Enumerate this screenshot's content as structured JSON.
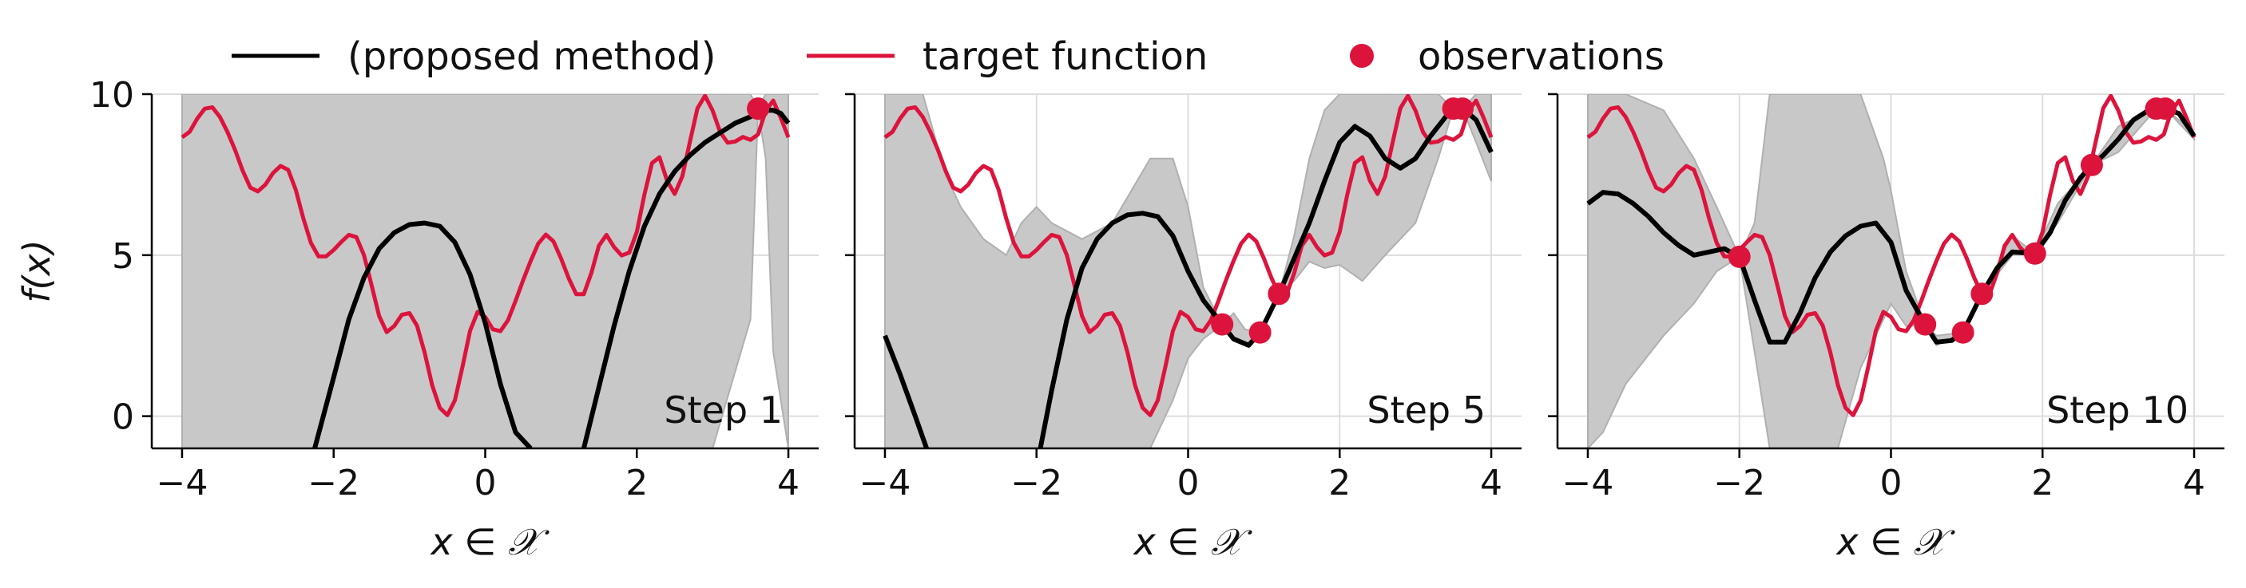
{
  "chart_data": {
    "type": "line",
    "layout": "three panels side by side, shared y axis",
    "legend": {
      "placement": "top-center, above panels",
      "entries": [
        {
          "label": "(proposed method)",
          "marker": "line",
          "color": "#000000"
        },
        {
          "label": "target function",
          "marker": "line",
          "color": "#dc143c"
        },
        {
          "label": "observations",
          "marker": "dot",
          "color": "#dc143c"
        }
      ]
    },
    "ylabel": "f(x)",
    "xlim": [
      -4.4,
      4.4
    ],
    "ylim": [
      -1.0,
      10.0
    ],
    "xticks": [
      -4,
      -2,
      0,
      2,
      4
    ],
    "xtick_labels": [
      "−4",
      "−2",
      "0",
      "2",
      "4"
    ],
    "yticks": [
      0,
      5,
      10
    ],
    "ytick_labels": [
      "0",
      "5",
      "10"
    ],
    "grid": true,
    "colors": {
      "target": "#dc143c",
      "model": "#000000",
      "band": "#c8c8c8",
      "grid": "#dddddd"
    },
    "target_function": {
      "name": "target function",
      "x": [
        -4.0,
        -3.9,
        -3.8,
        -3.7,
        -3.6,
        -3.5,
        -3.4,
        -3.3,
        -3.2,
        -3.1,
        -3.0,
        -2.9,
        -2.8,
        -2.7,
        -2.6,
        -2.5,
        -2.4,
        -2.3,
        -2.2,
        -2.1,
        -2.0,
        -1.9,
        -1.8,
        -1.7,
        -1.6,
        -1.5,
        -1.4,
        -1.3,
        -1.2,
        -1.1,
        -1.0,
        -0.9,
        -0.8,
        -0.7,
        -0.6,
        -0.5,
        -0.4,
        -0.3,
        -0.2,
        -0.1,
        0.0,
        0.1,
        0.2,
        0.3,
        0.4,
        0.5,
        0.6,
        0.7,
        0.8,
        0.9,
        1.0,
        1.1,
        1.2,
        1.3,
        1.4,
        1.5,
        1.6,
        1.7,
        1.8,
        1.9,
        2.0,
        2.1,
        2.2,
        2.3,
        2.4,
        2.5,
        2.6,
        2.7,
        2.8,
        2.9,
        3.0,
        3.1,
        3.2,
        3.3,
        3.4,
        3.5,
        3.6,
        3.7,
        3.8,
        3.9,
        4.0
      ],
      "y": [
        8.66,
        8.83,
        9.24,
        9.55,
        9.59,
        9.29,
        8.82,
        8.26,
        7.62,
        7.1,
        6.98,
        7.19,
        7.55,
        7.77,
        7.65,
        7.03,
        6.14,
        5.38,
        4.96,
        4.96,
        5.16,
        5.41,
        5.63,
        5.56,
        5.0,
        4.07,
        3.11,
        2.61,
        2.8,
        3.15,
        3.2,
        2.81,
        1.98,
        0.96,
        0.26,
        0.03,
        0.49,
        1.53,
        2.65,
        3.24,
        3.08,
        2.7,
        2.64,
        2.98,
        3.58,
        4.22,
        4.82,
        5.36,
        5.64,
        5.43,
        4.9,
        4.29,
        3.79,
        3.79,
        4.44,
        5.29,
        5.63,
        5.25,
        4.99,
        5.08,
        5.72,
        6.88,
        7.86,
        8.04,
        7.31,
        6.9,
        7.44,
        8.51,
        9.56,
        9.95,
        9.49,
        8.82,
        8.49,
        8.53,
        8.67,
        8.58,
        8.75,
        9.48,
        9.8,
        9.26,
        8.66
      ]
    },
    "panels": [
      {
        "label": "Step 1",
        "xlabel": "x ∈ 𝒳",
        "observations": {
          "x": [
            3.6
          ],
          "y": [
            9.55
          ]
        },
        "model_mean": {
          "name": "(proposed method)",
          "x": [
            -2.25,
            -2.0,
            -1.8,
            -1.6,
            -1.4,
            -1.2,
            -1.0,
            -0.8,
            -0.6,
            -0.4,
            -0.2,
            0.0,
            0.2,
            0.4,
            0.6,
            null,
            1.3,
            1.5,
            1.7,
            1.9,
            2.1,
            2.3,
            2.5,
            2.7,
            2.9,
            3.1,
            3.3,
            3.5,
            3.6,
            3.7,
            3.8,
            3.9,
            4.0
          ],
          "y": [
            -1.0,
            1.2,
            3.0,
            4.3,
            5.2,
            5.7,
            5.95,
            6.0,
            5.9,
            5.4,
            4.4,
            2.9,
            1.0,
            -0.5,
            -1.0,
            null,
            -1.0,
            0.9,
            2.8,
            4.5,
            5.9,
            6.9,
            7.6,
            8.1,
            8.5,
            8.8,
            9.1,
            9.3,
            9.45,
            9.5,
            9.5,
            9.4,
            9.1
          ]
        },
        "band": {
          "x": [
            -4.0,
            0.0,
            3.0,
            3.5,
            3.6,
            3.7,
            3.8,
            4.0
          ],
          "lower": [
            -1.0,
            -1.0,
            -1.0,
            3.0,
            9.55,
            8.0,
            2.0,
            -1.0
          ],
          "upper": [
            10.0,
            10.0,
            10.0,
            10.0,
            9.55,
            10.0,
            10.0,
            10.0
          ]
        }
      },
      {
        "label": "Step 5",
        "xlabel": "x ∈ 𝒳",
        "observations": {
          "x": [
            0.45,
            0.95,
            1.2,
            3.5,
            3.62
          ],
          "y": [
            2.85,
            2.6,
            3.8,
            9.55,
            9.55
          ]
        },
        "model_mean": {
          "name": "(proposed method)",
          "x": [
            -4.0,
            -3.8,
            -3.6,
            -3.45,
            null,
            -1.95,
            -1.8,
            -1.6,
            -1.4,
            -1.2,
            -1.0,
            -0.8,
            -0.6,
            -0.4,
            -0.2,
            0.0,
            0.2,
            0.45,
            0.6,
            0.8,
            0.95,
            1.2,
            1.4,
            1.6,
            1.8,
            2.0,
            2.2,
            2.4,
            2.6,
            2.8,
            3.0,
            3.2,
            3.4,
            3.5,
            3.62,
            3.7,
            3.8,
            4.0
          ],
          "y": [
            2.5,
            1.3,
            0.0,
            -1.0,
            null,
            -1.0,
            0.8,
            3.0,
            4.6,
            5.5,
            6.0,
            6.25,
            6.3,
            6.2,
            5.6,
            4.5,
            3.6,
            2.85,
            2.4,
            2.2,
            2.6,
            3.8,
            4.9,
            6.0,
            7.3,
            8.5,
            9.0,
            8.7,
            8.0,
            7.7,
            8.0,
            8.7,
            9.3,
            9.55,
            9.55,
            9.4,
            9.2,
            8.2
          ]
        },
        "band": {
          "x": [
            -4.0,
            -3.5,
            -3.2,
            -3.0,
            -2.7,
            -2.4,
            -2.2,
            -2.0,
            -1.8,
            -1.4,
            -1.0,
            -0.5,
            -0.2,
            0.0,
            0.2,
            0.45,
            0.6,
            0.75,
            0.95,
            1.2,
            1.4,
            1.6,
            1.8,
            2.0,
            2.3,
            2.6,
            3.0,
            3.3,
            3.5,
            3.62,
            3.8,
            4.0
          ],
          "lower": [
            -1.0,
            -1.0,
            -1.0,
            -1.0,
            -1.0,
            -1.0,
            -1.0,
            -1.0,
            -1.0,
            -1.0,
            -1.0,
            -1.0,
            0.5,
            1.8,
            2.4,
            2.85,
            2.4,
            2.2,
            2.6,
            3.8,
            4.2,
            4.8,
            4.6,
            4.7,
            4.2,
            5.0,
            6.0,
            8.0,
            9.55,
            9.55,
            8.5,
            7.3
          ],
          "upper": [
            10.0,
            10.0,
            7.5,
            6.5,
            5.5,
            5.0,
            6.0,
            6.5,
            6.0,
            5.5,
            6.0,
            8.0,
            8.0,
            6.5,
            4.0,
            2.85,
            3.2,
            2.7,
            2.6,
            3.8,
            5.6,
            8.0,
            9.5,
            10.0,
            10.0,
            10.0,
            10.0,
            10.0,
            9.55,
            9.55,
            10.0,
            10.0
          ]
        }
      },
      {
        "label": "Step 10",
        "xlabel": "x ∈ 𝒳",
        "observations": {
          "x": [
            -2.0,
            0.45,
            0.95,
            1.2,
            1.9,
            2.65,
            3.5,
            3.62
          ],
          "y": [
            4.95,
            2.85,
            2.6,
            3.8,
            5.05,
            7.8,
            9.55,
            9.55
          ]
        },
        "model_mean": {
          "name": "(proposed method)",
          "x": [
            -4.0,
            -3.8,
            -3.6,
            -3.4,
            -3.2,
            -3.0,
            -2.8,
            -2.6,
            -2.4,
            -2.2,
            -2.0,
            -1.8,
            -1.6,
            -1.4,
            -1.2,
            -1.0,
            -0.8,
            -0.6,
            -0.4,
            -0.2,
            0.0,
            0.2,
            0.45,
            0.6,
            0.8,
            0.95,
            1.2,
            1.4,
            1.6,
            1.9,
            2.1,
            2.3,
            2.5,
            2.65,
            2.8,
            3.0,
            3.2,
            3.4,
            3.5,
            3.62,
            3.8,
            4.0
          ],
          "y": [
            6.6,
            6.95,
            6.9,
            6.6,
            6.2,
            5.7,
            5.3,
            5.0,
            5.1,
            5.2,
            4.95,
            3.6,
            2.3,
            2.3,
            3.2,
            4.3,
            5.1,
            5.6,
            5.9,
            6.0,
            5.4,
            3.9,
            2.85,
            2.3,
            2.35,
            2.6,
            3.8,
            4.6,
            5.1,
            5.05,
            5.7,
            6.7,
            7.4,
            7.8,
            8.1,
            8.6,
            9.2,
            9.5,
            9.55,
            9.55,
            9.4,
            8.7
          ]
        },
        "band": {
          "x": [
            -4.0,
            -3.8,
            -3.5,
            -3.0,
            -2.6,
            -2.3,
            -2.0,
            -1.8,
            -1.6,
            -1.4,
            -1.2,
            -1.0,
            -0.7,
            -0.4,
            -0.1,
            0.0,
            0.2,
            0.45,
            0.6,
            0.95,
            1.2,
            1.6,
            1.9,
            2.2,
            2.65,
            3.0,
            3.5,
            3.62,
            4.0
          ],
          "lower": [
            -1.0,
            -0.5,
            1.0,
            2.5,
            3.5,
            4.5,
            4.95,
            2.0,
            -1.0,
            -1.0,
            -1.0,
            -1.0,
            -1.0,
            1.5,
            3.0,
            3.5,
            2.8,
            2.85,
            2.2,
            2.6,
            3.8,
            5.0,
            5.05,
            6.0,
            7.8,
            8.2,
            9.55,
            9.55,
            8.6
          ],
          "upper": [
            10.0,
            10.0,
            10.0,
            9.5,
            8.0,
            6.5,
            4.95,
            6.0,
            10.0,
            10.0,
            10.0,
            10.0,
            10.0,
            10.0,
            8.0,
            7.0,
            4.5,
            2.85,
            2.5,
            2.6,
            3.8,
            5.6,
            5.05,
            6.6,
            7.8,
            9.0,
            9.55,
            9.55,
            8.8
          ]
        }
      }
    ]
  }
}
